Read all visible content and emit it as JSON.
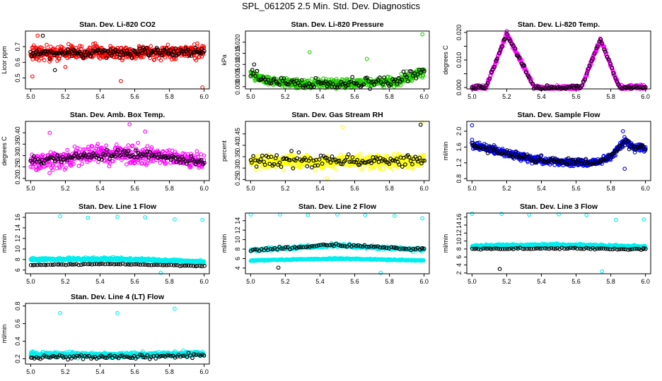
{
  "main_title": "SPL_061205  2.5 Min. Std. Dev. Diagnostics",
  "colors": {
    "red": "#ff0000",
    "green": "#22cc00",
    "magenta": "#ff00ff",
    "yellow": "#ffff00",
    "blue": "#0000ee",
    "cyan": "#00eeee",
    "reference": "#000000",
    "axis": "#000000"
  },
  "chart_data": [
    {
      "id": "co2",
      "type": "scatter",
      "title": "Stan. Dev. Li-820 CO2",
      "ylabel": "Licor ppm",
      "xlim": [
        4.97,
        6.03
      ],
      "ylim": [
        0.43,
        0.8
      ],
      "x_ticks": [
        5.0,
        5.2,
        5.4,
        5.6,
        5.8,
        6.0
      ],
      "x_tick_labels": [
        "5.0",
        "5.2",
        "5.4",
        "5.6",
        "5.8",
        "6.0"
      ],
      "y_ticks": [
        0.5,
        0.6,
        0.7
      ],
      "y_tick_labels": [
        "0.5",
        "0.6",
        "0.7"
      ],
      "color_key": "red",
      "main_n": 560,
      "ref_n": 140,
      "trend": [
        [
          5.0,
          0.66
        ],
        [
          5.5,
          0.66
        ],
        [
          6.0,
          0.67
        ]
      ],
      "spread": 0.045,
      "ref_spread": 0.03,
      "outliers": [
        [
          5.01,
          0.51
        ],
        [
          5.04,
          0.77
        ],
        [
          5.52,
          0.48
        ],
        [
          5.99,
          0.44
        ],
        [
          5.2,
          0.57
        ]
      ],
      "ref_outliers": [
        [
          5.07,
          0.77
        ],
        [
          5.14,
          0.55
        ]
      ]
    },
    {
      "id": "pressure",
      "type": "scatter",
      "title": "Stan. Dev. Li-820 Pressure",
      "ylabel": "kPa",
      "xlim": [
        4.97,
        6.03
      ],
      "ylim": [
        -0.001,
        0.025
      ],
      "x_ticks": [
        5.0,
        5.2,
        5.4,
        5.6,
        5.8,
        6.0
      ],
      "x_tick_labels": [
        "5.0",
        "5.2",
        "5.4",
        "5.6",
        "5.8",
        "6.0"
      ],
      "y_ticks": [
        0.0,
        0.005,
        0.01,
        0.015,
        0.02
      ],
      "y_tick_labels": [
        "0.000",
        "0.005",
        "0.010",
        "0.015",
        "0.020"
      ],
      "color_key": "green",
      "main_n": 520,
      "ref_n": 110,
      "trend": [
        [
          5.0,
          0.006
        ],
        [
          5.1,
          0.0025
        ],
        [
          5.3,
          0.0015
        ],
        [
          5.6,
          0.0015
        ],
        [
          5.85,
          0.0025
        ],
        [
          6.0,
          0.007
        ]
      ],
      "spread": 0.002,
      "ref_spread": 0.0025,
      "outliers": [
        [
          5.34,
          0.0155
        ],
        [
          5.67,
          0.0125
        ],
        [
          5.99,
          0.0235
        ]
      ],
      "ref_outliers": [
        [
          5.02,
          0.01
        ]
      ]
    },
    {
      "id": "temp",
      "type": "scatter",
      "title": "Stan. Dev. Li-820 Temp.",
      "ylabel": "degrees C",
      "xlim": [
        4.97,
        6.03
      ],
      "ylim": [
        -0.0005,
        0.0205
      ],
      "x_ticks": [
        5.0,
        5.2,
        5.4,
        5.6,
        5.8,
        6.0
      ],
      "x_tick_labels": [
        "5.0",
        "5.2",
        "5.4",
        "5.6",
        "5.8",
        "6.0"
      ],
      "y_ticks": [
        0.0,
        0.005,
        0.01,
        0.015,
        0.02
      ],
      "y_tick_labels": [
        "0.000",
        "",
        "0.010",
        "",
        "0.020"
      ],
      "color_key": "magenta",
      "main_n": 520,
      "ref_n": 110,
      "trend": [
        [
          5.0,
          0.0
        ],
        [
          5.08,
          0.0
        ],
        [
          5.2,
          0.0195
        ],
        [
          5.36,
          0.0
        ],
        [
          5.63,
          0.0
        ],
        [
          5.74,
          0.0175
        ],
        [
          5.85,
          0.0
        ],
        [
          6.0,
          0.0
        ]
      ],
      "spread": 0.0008,
      "ref_spread": 0.0008,
      "outliers": [],
      "ref_outliers": []
    },
    {
      "id": "boxtemp",
      "type": "scatter",
      "title": "Stan. Dev. Amb. Box Temp.",
      "ylabel": "degrees C",
      "xlim": [
        4.97,
        6.03
      ],
      "ylim": [
        0.19,
        0.45
      ],
      "x_ticks": [
        5.0,
        5.2,
        5.4,
        5.6,
        5.8,
        6.0
      ],
      "x_tick_labels": [
        "5.0",
        "5.2",
        "5.4",
        "5.6",
        "5.8",
        "6.0"
      ],
      "y_ticks": [
        0.2,
        0.25,
        0.3,
        0.35,
        0.4
      ],
      "y_tick_labels": [
        "0.20",
        "0.25",
        "0.30",
        "0.35",
        "0.40"
      ],
      "color_key": "magenta",
      "main_n": 480,
      "ref_n": 120,
      "trend": [
        [
          5.0,
          0.27
        ],
        [
          5.3,
          0.3
        ],
        [
          5.5,
          0.305
        ],
        [
          5.7,
          0.3
        ],
        [
          6.0,
          0.27
        ]
      ],
      "spread": 0.04,
      "ref_spread": 0.018,
      "outliers": [
        [
          5.57,
          0.437
        ],
        [
          5.11,
          0.4
        ],
        [
          5.66,
          0.405
        ]
      ],
      "ref_outliers": []
    },
    {
      "id": "rh",
      "type": "scatter",
      "title": "Stan. Dev. Gas Stream RH",
      "ylabel": "percent",
      "xlim": [
        4.97,
        6.03
      ],
      "ylim": [
        0.245,
        0.505
      ],
      "x_ticks": [
        5.0,
        5.2,
        5.4,
        5.6,
        5.8,
        6.0
      ],
      "x_tick_labels": [
        "5.0",
        "5.2",
        "5.4",
        "5.6",
        "5.8",
        "6.0"
      ],
      "y_ticks": [
        0.25,
        0.3,
        0.35,
        0.4,
        0.45
      ],
      "y_tick_labels": [
        "0.25",
        "0.30",
        "0.35",
        "0.40",
        "0.45"
      ],
      "color_key": "yellow",
      "main_n": 520,
      "ref_n": 120,
      "trend": [
        [
          5.0,
          0.33
        ],
        [
          6.0,
          0.33
        ]
      ],
      "spread": 0.03,
      "ref_spread": 0.03,
      "outliers": [
        [
          5.44,
          0.255
        ],
        [
          5.53,
          0.48
        ],
        [
          5.99,
          0.5
        ]
      ],
      "ref_outliers": [
        [
          5.98,
          0.49
        ]
      ]
    },
    {
      "id": "sampleflow",
      "type": "scatter",
      "title": "Stan. Dev. Sample Flow",
      "ylabel": "ml/min",
      "xlim": [
        4.97,
        6.03
      ],
      "ylim": [
        0.75,
        2.25
      ],
      "x_ticks": [
        5.0,
        5.2,
        5.4,
        5.6,
        5.8,
        6.0
      ],
      "x_tick_labels": [
        "5.0",
        "5.2",
        "5.4",
        "5.6",
        "5.8",
        "6.0"
      ],
      "y_ticks": [
        0.8,
        1.2,
        1.6,
        2.0
      ],
      "y_tick_labels": [
        "0.8",
        "1.2",
        "1.6",
        "2.0"
      ],
      "color_key": "blue",
      "main_n": 560,
      "ref_n": 120,
      "trend": [
        [
          5.0,
          1.65
        ],
        [
          5.15,
          1.5
        ],
        [
          5.35,
          1.3
        ],
        [
          5.55,
          1.2
        ],
        [
          5.7,
          1.2
        ],
        [
          5.8,
          1.35
        ],
        [
          5.88,
          1.75
        ],
        [
          5.93,
          1.6
        ],
        [
          6.0,
          1.55
        ]
      ],
      "spread": 0.1,
      "ref_spread": 0.1,
      "outliers": [
        [
          5.0,
          2.15
        ],
        [
          5.87,
          2.0
        ],
        [
          5.88,
          1.05
        ]
      ],
      "ref_outliers": []
    },
    {
      "id": "line1",
      "type": "scatter",
      "title": "Stan. Dev. Line 1 Flow",
      "ylabel": "ml/min",
      "xlim": [
        4.97,
        6.03
      ],
      "ylim": [
        5.3,
        16.8
      ],
      "x_ticks": [
        5.0,
        5.2,
        5.4,
        5.6,
        5.8,
        6.0
      ],
      "x_tick_labels": [
        "5.0",
        "5.2",
        "5.4",
        "5.6",
        "5.8",
        "6.0"
      ],
      "y_ticks": [
        6,
        8,
        10,
        12,
        14,
        16
      ],
      "y_tick_labels": [
        "6",
        "8",
        "10",
        "12",
        "14",
        "16"
      ],
      "color_key": "cyan",
      "main_n": 620,
      "ref_n": 80,
      "trend": [
        [
          5.0,
          8.0
        ],
        [
          5.5,
          8.1
        ],
        [
          6.0,
          7.6
        ]
      ],
      "spread": 0.28,
      "ref_trend": [
        [
          5.0,
          6.95
        ],
        [
          5.5,
          7.15
        ],
        [
          6.0,
          6.75
        ]
      ],
      "ref_spread": 0.08,
      "outliers": [
        [
          5.17,
          16.2
        ],
        [
          5.33,
          15.9
        ],
        [
          5.5,
          16.1
        ],
        [
          5.66,
          16.0
        ],
        [
          5.83,
          15.6
        ],
        [
          5.99,
          15.5
        ],
        [
          5.75,
          5.5
        ]
      ],
      "ref_outliers": []
    },
    {
      "id": "line2",
      "type": "scatter",
      "title": "Stan. Dev. Line 2 Flow",
      "ylabel": "ml/min",
      "xlim": [
        4.97,
        6.03
      ],
      "ylim": [
        2.8,
        15.6
      ],
      "x_ticks": [
        5.0,
        5.2,
        5.4,
        5.6,
        5.8,
        6.0
      ],
      "x_tick_labels": [
        "5.0",
        "5.2",
        "5.4",
        "5.6",
        "5.8",
        "6.0"
      ],
      "y_ticks": [
        4,
        6,
        8,
        10,
        12,
        14
      ],
      "y_tick_labels": [
        "4",
        "6",
        "8",
        "10",
        "12",
        "14"
      ],
      "color_key": "cyan",
      "main_n": 720,
      "ref_n": 80,
      "trend": [
        [
          5.0,
          5.6
        ],
        [
          5.5,
          6.0
        ],
        [
          6.0,
          5.6
        ]
      ],
      "spread": 0.12,
      "trend2": [
        [
          5.0,
          7.8
        ],
        [
          5.5,
          8.8
        ],
        [
          6.0,
          7.8
        ]
      ],
      "spread2": 0.35,
      "ref_trend": [
        [
          5.0,
          7.8
        ],
        [
          5.5,
          8.9
        ],
        [
          6.0,
          7.9
        ]
      ],
      "ref_spread": 0.3,
      "outliers": [
        [
          5.0,
          15.3
        ],
        [
          5.17,
          15.3
        ],
        [
          5.33,
          15.2
        ],
        [
          5.5,
          15.3
        ],
        [
          5.66,
          15.2
        ],
        [
          5.83,
          15.0
        ],
        [
          5.99,
          14.5
        ],
        [
          5.75,
          3.0
        ]
      ],
      "ref_outliers": [
        [
          5.16,
          4.1
        ],
        [
          5.99,
          8.2
        ]
      ]
    },
    {
      "id": "line3",
      "type": "scatter",
      "title": "Stan. Dev. Line 3 Flow",
      "ylabel": "ml/min",
      "xlim": [
        4.97,
        6.03
      ],
      "ylim": [
        1.8,
        17.0
      ],
      "x_ticks": [
        5.0,
        5.2,
        5.4,
        5.6,
        5.8,
        6.0
      ],
      "x_tick_labels": [
        "5.0",
        "5.2",
        "5.4",
        "5.6",
        "5.8",
        "6.0"
      ],
      "y_ticks": [
        2,
        4,
        6,
        8,
        10,
        12,
        14,
        16
      ],
      "y_tick_labels": [
        "2",
        "4",
        "6",
        "8",
        "10",
        "12",
        "14",
        "16"
      ],
      "color_key": "cyan",
      "main_n": 720,
      "ref_n": 80,
      "trend": [
        [
          5.0,
          8.7
        ],
        [
          5.5,
          9.0
        ],
        [
          6.0,
          8.5
        ]
      ],
      "spread": 0.35,
      "ref_trend": [
        [
          5.0,
          8.0
        ],
        [
          5.5,
          8.2
        ],
        [
          6.0,
          7.9
        ]
      ],
      "ref_spread": 0.2,
      "outliers": [
        [
          5.0,
          16.8
        ],
        [
          5.17,
          16.8
        ],
        [
          5.33,
          16.6
        ],
        [
          5.5,
          16.7
        ],
        [
          5.66,
          16.5
        ],
        [
          5.83,
          15.3
        ],
        [
          5.99,
          15.4
        ],
        [
          5.75,
          2.4
        ]
      ],
      "ref_outliers": [
        [
          5.16,
          3.0
        ],
        [
          5.99,
          8.2
        ]
      ]
    },
    {
      "id": "line4",
      "type": "scatter",
      "title": "Stan. Dev. Line 4 (LT) Flow",
      "ylabel": "ml/min",
      "xlim": [
        4.97,
        6.03
      ],
      "ylim": [
        0.14,
        0.83
      ],
      "x_ticks": [
        5.0,
        5.2,
        5.4,
        5.6,
        5.8,
        6.0
      ],
      "x_tick_labels": [
        "5.0",
        "5.2",
        "5.4",
        "5.6",
        "5.8",
        "6.0"
      ],
      "y_ticks": [
        0.2,
        0.4,
        0.6,
        0.8
      ],
      "y_tick_labels": [
        "0.2",
        "0.4",
        "0.6",
        "0.8"
      ],
      "color_key": "cyan",
      "main_n": 640,
      "ref_n": 90,
      "trend": [
        [
          5.0,
          0.25
        ],
        [
          5.5,
          0.24
        ],
        [
          6.0,
          0.26
        ]
      ],
      "spread": 0.03,
      "ref_trend": [
        [
          5.0,
          0.22
        ],
        [
          5.5,
          0.22
        ],
        [
          6.0,
          0.24
        ]
      ],
      "ref_spread": 0.025,
      "outliers": [
        [
          5.17,
          0.72
        ],
        [
          5.5,
          0.72
        ],
        [
          5.83,
          0.77
        ]
      ],
      "ref_outliers": []
    }
  ]
}
